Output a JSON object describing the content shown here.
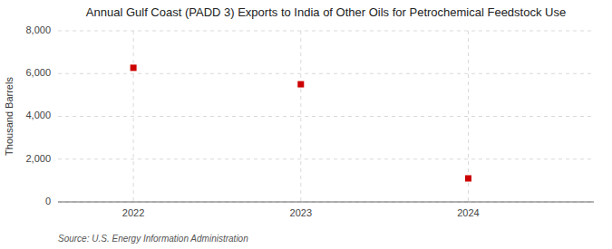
{
  "chart_data": {
    "type": "scatter",
    "title": "Annual Gulf Coast (PADD 3) Exports to India of Other Oils for Petrochemical Feedstock Use",
    "y_label": "Thousand Barrels",
    "annotations": [
      "Source: U.S. Energy Information Administration"
    ],
    "x": [
      2022,
      2023,
      2024
    ],
    "values": [
      6270,
      5500,
      1100
    ],
    "color": "#cc0000",
    "marker": "square",
    "xlim": [
      2021.55,
      2024.75
    ],
    "xticks": [
      2022,
      2023,
      2024
    ],
    "ylim": [
      0,
      8000
    ],
    "yticks": [
      0,
      {
        "value": 2000,
        "label": "2,000"
      },
      {
        "value": 4000,
        "label": "4,000"
      },
      {
        "value": 6000,
        "label": "6,000"
      },
      {
        "value": 8000,
        "label": "8,000"
      }
    ],
    "grid": true
  }
}
